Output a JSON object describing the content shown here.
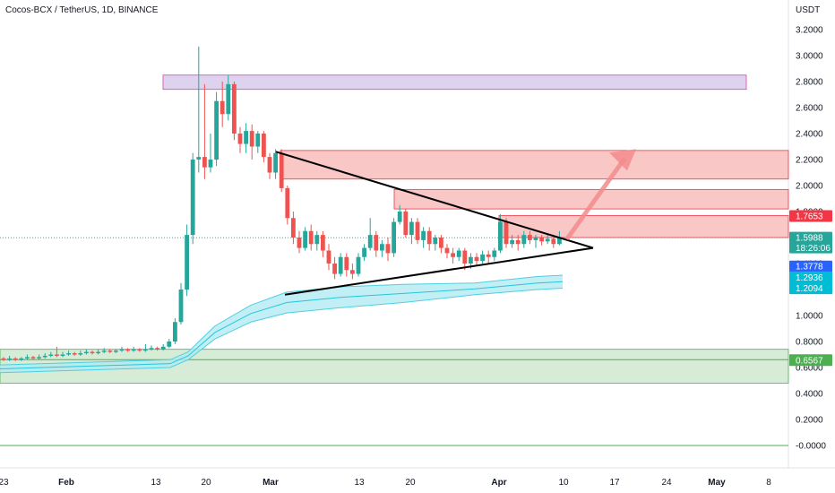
{
  "header": {
    "title": "Cocos-BCX / TetherUS, 1D, BINANCE"
  },
  "chart_data": {
    "type": "candlestick",
    "currency_label": "USDT",
    "y_range": [
      -0.05,
      3.35
    ],
    "y_ticks": [
      "3.2000",
      "3.0000",
      "2.8000",
      "2.6000",
      "2.4000",
      "2.2000",
      "2.0000",
      "1.8000",
      "1.6000",
      "1.4000",
      "1.2000",
      "1.0000",
      "0.8000",
      "0.6000",
      "0.4000",
      "0.2000",
      "-0.0000"
    ],
    "x_labels": [
      "23",
      "Feb",
      "13",
      "20",
      "Mar",
      "13",
      "20",
      "Apr",
      "10",
      "17",
      "24",
      "May",
      "8"
    ],
    "price_badges": [
      {
        "value": "1.7653",
        "sub": "",
        "color": "#f23645"
      },
      {
        "value": "1.5988",
        "sub": "18:26:06",
        "color": "#26a69a"
      },
      {
        "value": "1.3778",
        "sub": "",
        "color": "#2962ff"
      },
      {
        "value": "1.2936",
        "sub": "",
        "color": "#00bcd4"
      },
      {
        "value": "1.2094",
        "sub": "",
        "color": "#00bcd4"
      },
      {
        "value": "0.6567",
        "sub": "",
        "color": "#4caf50"
      }
    ],
    "candles": [
      [
        0.67,
        0.66,
        0.68,
        0.65
      ],
      [
        0.66,
        0.67,
        0.69,
        0.65
      ],
      [
        0.67,
        0.66,
        0.68,
        0.65
      ],
      [
        0.66,
        0.67,
        0.68,
        0.65
      ],
      [
        0.67,
        0.68,
        0.7,
        0.66
      ],
      [
        0.68,
        0.67,
        0.69,
        0.66
      ],
      [
        0.67,
        0.68,
        0.7,
        0.66
      ],
      [
        0.68,
        0.69,
        0.71,
        0.67
      ],
      [
        0.69,
        0.7,
        0.72,
        0.68
      ],
      [
        0.7,
        0.69,
        0.76,
        0.68
      ],
      [
        0.69,
        0.7,
        0.72,
        0.68
      ],
      [
        0.7,
        0.71,
        0.73,
        0.69
      ],
      [
        0.71,
        0.7,
        0.72,
        0.69
      ],
      [
        0.7,
        0.71,
        0.73,
        0.69
      ],
      [
        0.71,
        0.72,
        0.74,
        0.7
      ],
      [
        0.72,
        0.71,
        0.73,
        0.7
      ],
      [
        0.71,
        0.72,
        0.74,
        0.7
      ],
      [
        0.72,
        0.73,
        0.75,
        0.71
      ],
      [
        0.73,
        0.72,
        0.74,
        0.71
      ],
      [
        0.72,
        0.73,
        0.74,
        0.71
      ],
      [
        0.73,
        0.74,
        0.76,
        0.72
      ],
      [
        0.74,
        0.73,
        0.75,
        0.72
      ],
      [
        0.73,
        0.74,
        0.76,
        0.72
      ],
      [
        0.74,
        0.73,
        0.75,
        0.72
      ],
      [
        0.73,
        0.74,
        0.78,
        0.72
      ],
      [
        0.74,
        0.75,
        0.77,
        0.73
      ],
      [
        0.75,
        0.74,
        0.76,
        0.73
      ],
      [
        0.74,
        0.76,
        0.78,
        0.73
      ],
      [
        0.76,
        0.8,
        0.82,
        0.75
      ],
      [
        0.8,
        0.95,
        0.98,
        0.78
      ],
      [
        0.95,
        1.2,
        1.25,
        0.93
      ],
      [
        1.2,
        1.62,
        1.7,
        1.15
      ],
      [
        1.62,
        2.2,
        2.25,
        1.55
      ],
      [
        2.2,
        2.22,
        3.07,
        2.1
      ],
      [
        2.22,
        2.14,
        2.78,
        2.05
      ],
      [
        2.14,
        2.2,
        2.4,
        2.1
      ],
      [
        2.2,
        2.65,
        2.72,
        2.15
      ],
      [
        2.65,
        2.55,
        2.8,
        2.45
      ],
      [
        2.55,
        2.78,
        2.85,
        2.5
      ],
      [
        2.78,
        2.4,
        2.8,
        2.35
      ],
      [
        2.4,
        2.32,
        2.45,
        2.25
      ],
      [
        2.32,
        2.42,
        2.48,
        2.25
      ],
      [
        2.42,
        2.3,
        2.47,
        2.2
      ],
      [
        2.3,
        2.4,
        2.42,
        2.25
      ],
      [
        2.4,
        2.22,
        2.42,
        2.18
      ],
      [
        2.22,
        2.1,
        2.25,
        2.05
      ],
      [
        2.1,
        2.25,
        2.28,
        2.05
      ],
      [
        2.25,
        1.98,
        2.28,
        1.95
      ],
      [
        1.98,
        1.75,
        2.0,
        1.7
      ],
      [
        1.75,
        1.6,
        1.8,
        1.55
      ],
      [
        1.6,
        1.52,
        1.65,
        1.48
      ],
      [
        1.52,
        1.65,
        1.68,
        1.5
      ],
      [
        1.65,
        1.55,
        1.7,
        1.5
      ],
      [
        1.55,
        1.62,
        1.65,
        1.5
      ],
      [
        1.62,
        1.5,
        1.65,
        1.45
      ],
      [
        1.5,
        1.4,
        1.55,
        1.35
      ],
      [
        1.4,
        1.32,
        1.45,
        1.28
      ],
      [
        1.32,
        1.45,
        1.48,
        1.3
      ],
      [
        1.45,
        1.35,
        1.48,
        1.3
      ],
      [
        1.35,
        1.32,
        1.4,
        1.28
      ],
      [
        1.32,
        1.45,
        1.48,
        1.3
      ],
      [
        1.45,
        1.52,
        1.55,
        1.42
      ],
      [
        1.52,
        1.62,
        1.75,
        1.5
      ],
      [
        1.62,
        1.5,
        1.65,
        1.45
      ],
      [
        1.5,
        1.55,
        1.58,
        1.45
      ],
      [
        1.55,
        1.48,
        1.6,
        1.42
      ],
      [
        1.48,
        1.72,
        1.75,
        1.45
      ],
      [
        1.72,
        1.8,
        1.85,
        1.7
      ],
      [
        1.8,
        1.62,
        1.82,
        1.6
      ],
      [
        1.62,
        1.72,
        1.75,
        1.55
      ],
      [
        1.72,
        1.58,
        1.75,
        1.55
      ],
      [
        1.58,
        1.65,
        1.68,
        1.52
      ],
      [
        1.65,
        1.55,
        1.68,
        1.5
      ],
      [
        1.55,
        1.6,
        1.62,
        1.5
      ],
      [
        1.6,
        1.52,
        1.62,
        1.48
      ],
      [
        1.52,
        1.48,
        1.55,
        1.44
      ],
      [
        1.48,
        1.45,
        1.52,
        1.4
      ],
      [
        1.45,
        1.5,
        1.52,
        1.42
      ],
      [
        1.5,
        1.4,
        1.52,
        1.35
      ],
      [
        1.4,
        1.45,
        1.48,
        1.36
      ],
      [
        1.45,
        1.42,
        1.48,
        1.38
      ],
      [
        1.42,
        1.47,
        1.5,
        1.4
      ],
      [
        1.47,
        1.45,
        1.5,
        1.4
      ],
      [
        1.45,
        1.5,
        1.52,
        1.42
      ],
      [
        1.5,
        1.72,
        1.78,
        1.48
      ],
      [
        1.72,
        1.55,
        1.75,
        1.52
      ],
      [
        1.55,
        1.58,
        1.62,
        1.52
      ],
      [
        1.58,
        1.55,
        1.62,
        1.5
      ],
      [
        1.55,
        1.62,
        1.65,
        1.52
      ],
      [
        1.62,
        1.58,
        1.65,
        1.55
      ],
      [
        1.58,
        1.6,
        1.62,
        1.52
      ],
      [
        1.6,
        1.57,
        1.62,
        1.54
      ],
      [
        1.57,
        1.59,
        1.62,
        1.55
      ],
      [
        1.59,
        1.55,
        1.6,
        1.52
      ],
      [
        1.55,
        1.6,
        1.65,
        1.54
      ]
    ],
    "first_candle_x": 4,
    "candle_spacing": 6.6,
    "dashed_last_price": 1.5988,
    "moving_average_band": {
      "upper": [
        [
          0,
          0.62
        ],
        [
          190,
          0.66
        ],
        [
          210,
          0.72
        ],
        [
          240,
          0.92
        ],
        [
          280,
          1.08
        ],
        [
          320,
          1.18
        ],
        [
          380,
          1.22
        ],
        [
          450,
          1.24
        ],
        [
          530,
          1.25
        ],
        [
          600,
          1.3
        ],
        [
          628,
          1.31
        ]
      ],
      "lower": [
        [
          0,
          0.56
        ],
        [
          190,
          0.6
        ],
        [
          210,
          0.66
        ],
        [
          240,
          0.82
        ],
        [
          280,
          0.95
        ],
        [
          320,
          1.02
        ],
        [
          380,
          1.06
        ],
        [
          450,
          1.1
        ],
        [
          530,
          1.16
        ],
        [
          600,
          1.2
        ],
        [
          628,
          1.21
        ]
      ]
    },
    "zones": [
      {
        "name": "resistance-purple",
        "price_top": 2.85,
        "price_bottom": 2.74,
        "x1": 182,
        "x2": 833,
        "fill": "#d1c4e9",
        "stroke": "#e040a0"
      },
      {
        "name": "resistance-red-top",
        "price_top": 2.27,
        "price_bottom": 2.05,
        "x1": 313,
        "x2": 880,
        "fill": "#f8b4b4",
        "stroke": "#f23645"
      },
      {
        "name": "resistance-red-mid",
        "price_top": 1.97,
        "price_bottom": 1.82,
        "x1": 440,
        "x2": 880,
        "fill": "#f8b4b4",
        "stroke": "#f23645"
      },
      {
        "name": "resistance-red-low",
        "price_top": 1.77,
        "price_bottom": 1.6,
        "x1": 557,
        "x2": 880,
        "fill": "#f8b4b4",
        "stroke": "#f23645"
      },
      {
        "name": "support-green",
        "price_top": 0.74,
        "price_bottom": 0.48,
        "x1": 0,
        "x2": 880,
        "fill": "#c8e6c9",
        "stroke": "#4caf50"
      }
    ],
    "trend_lines": [
      {
        "name": "upper-trendline",
        "from": [
          308,
          2.26
        ],
        "to": [
          662,
          1.52
        ]
      },
      {
        "name": "lower-trendline",
        "from": [
          318,
          1.16
        ],
        "to": [
          662,
          1.52
        ]
      }
    ],
    "arrow": {
      "from": [
        634,
        1.6
      ],
      "to": [
        710,
        2.28
      ],
      "color": "#f28b8b"
    },
    "zero_line_color": "#4caf50"
  }
}
